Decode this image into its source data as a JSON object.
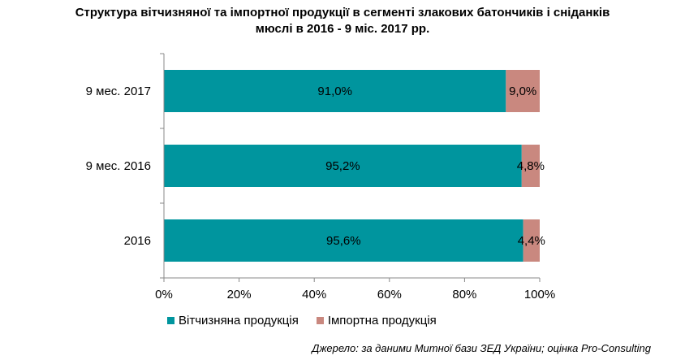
{
  "chart_data": {
    "type": "bar",
    "orientation": "horizontal",
    "stacked": "percent",
    "title_lines": [
      "Структура вітчизняної та імпортної продукції в сегменті злакових батончиків і сніданків",
      "мюслі в 2016 - 9 міс. 2017 рр."
    ],
    "categories": [
      "9 мес. 2017",
      "9 мес. 2016",
      "2016"
    ],
    "series": [
      {
        "name": "Вітчизняна продукція",
        "color": "#00959E",
        "values": [
          91.0,
          95.2,
          95.6
        ],
        "labels": [
          "91,0%",
          "95,2%",
          "95,6%"
        ]
      },
      {
        "name": "Імпортна продукція",
        "color": "#C9887F",
        "values": [
          9.0,
          4.8,
          4.4
        ],
        "labels": [
          "9,0%",
          "4,8%",
          "4,4%"
        ]
      }
    ],
    "x_ticks": [
      "0%",
      "20%",
      "40%",
      "60%",
      "80%",
      "100%"
    ],
    "xlim": [
      0,
      100
    ],
    "grid": false,
    "legend_position": "bottom",
    "source": "Джерело: за даними Митної бази ЗЕД України; оцінка Pro-Consulting"
  }
}
